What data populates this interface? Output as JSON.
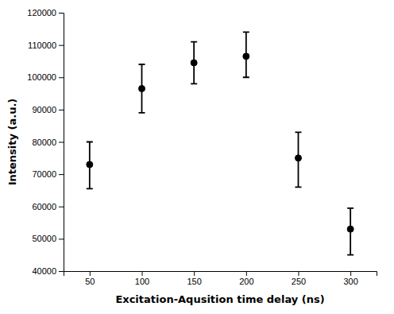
{
  "chart_data": {
    "type": "scatter",
    "x": [
      50,
      100,
      150,
      200,
      250,
      300
    ],
    "values": [
      73000,
      96500,
      104500,
      106500,
      75000,
      53000
    ],
    "yerr_lower": [
      7500,
      7500,
      6500,
      6500,
      9000,
      8000
    ],
    "yerr_upper": [
      7000,
      7500,
      6500,
      7500,
      8000,
      6500
    ],
    "xlabel": "Excitation-Aqusition time delay (ns)",
    "ylabel": "Intensity (a.u.)",
    "xlim": [
      25,
      325
    ],
    "ylim": [
      40000,
      120000
    ],
    "xticks": [
      50,
      100,
      150,
      200,
      250,
      300
    ],
    "yticks": [
      40000,
      50000,
      60000,
      70000,
      80000,
      90000,
      100000,
      110000,
      120000
    ],
    "color": "#000000"
  }
}
